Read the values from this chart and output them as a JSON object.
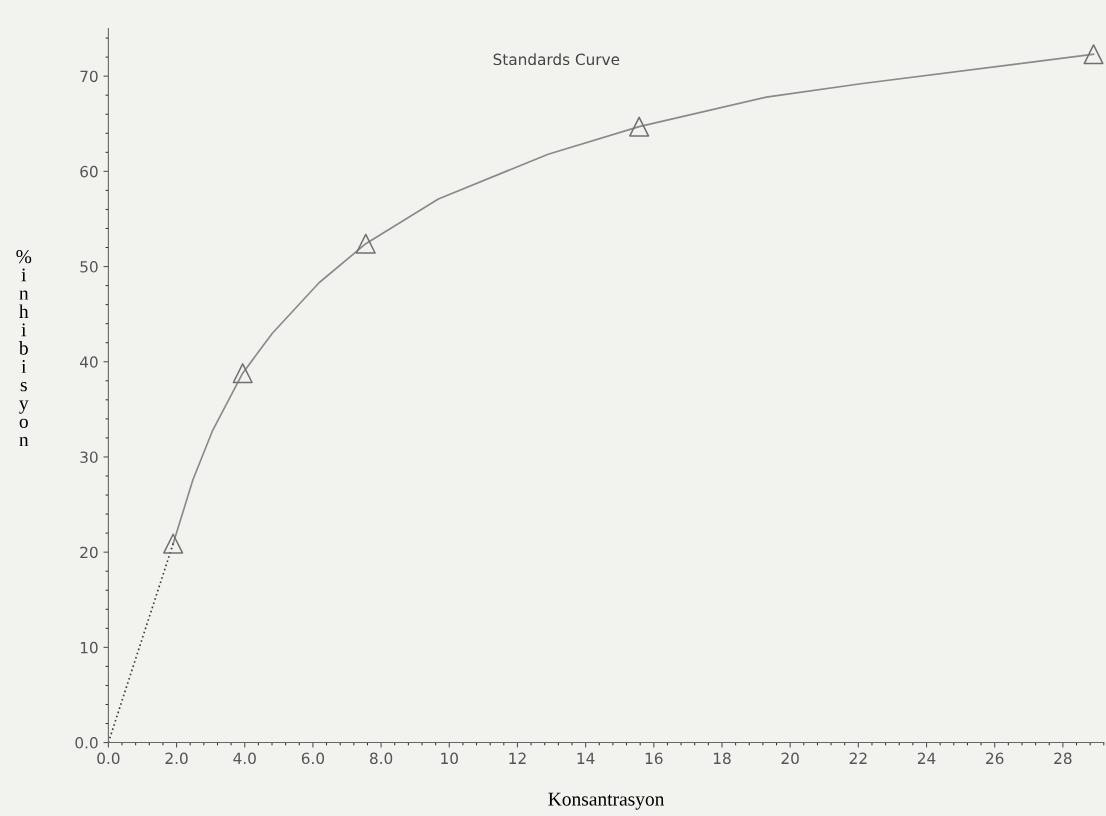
{
  "chart_data": {
    "type": "line",
    "title": "Standards Curve",
    "xlabel": "Konsantrasyon",
    "ylabel": "% inhibisyon",
    "xlim": [
      0,
      29.2
    ],
    "ylim": [
      0,
      75
    ],
    "xticks": [
      {
        "value": 0,
        "label": "0.0"
      },
      {
        "value": 2,
        "label": "2.0"
      },
      {
        "value": 4,
        "label": "4.0"
      },
      {
        "value": 6,
        "label": "6.0"
      },
      {
        "value": 8,
        "label": "8.0"
      },
      10,
      12,
      14,
      16,
      18,
      20,
      22,
      24,
      26,
      28
    ],
    "yticks": [
      {
        "value": 0,
        "label": "0.0"
      },
      10,
      20,
      30,
      40,
      50,
      60,
      70
    ],
    "grid": false,
    "legend": false,
    "series": [
      {
        "color": "#8a8a8a",
        "line_style": "solid",
        "marker": "none",
        "x": [
          1.9,
          2.48,
          3.06,
          3.94,
          4.81,
          6.18,
          7.55,
          9.68,
          12.9,
          15.57,
          19.3,
          22.07,
          28.9
        ],
        "values": [
          20.9,
          27.6,
          32.8,
          38.8,
          43.0,
          48.3,
          52.4,
          57.1,
          61.8,
          64.7,
          67.8,
          69.2,
          72.3
        ]
      },
      {
        "type": "scatter",
        "color": "#707070",
        "marker": "triangle",
        "x": [
          1.9,
          3.94,
          7.55,
          15.57,
          28.9
        ],
        "values": [
          20.9,
          38.8,
          52.4,
          64.7,
          72.3
        ]
      },
      {
        "color": "#404040",
        "line_style": "dotted",
        "marker": "none",
        "x": [
          0,
          1.9
        ],
        "values": [
          0,
          20.9
        ]
      }
    ]
  }
}
